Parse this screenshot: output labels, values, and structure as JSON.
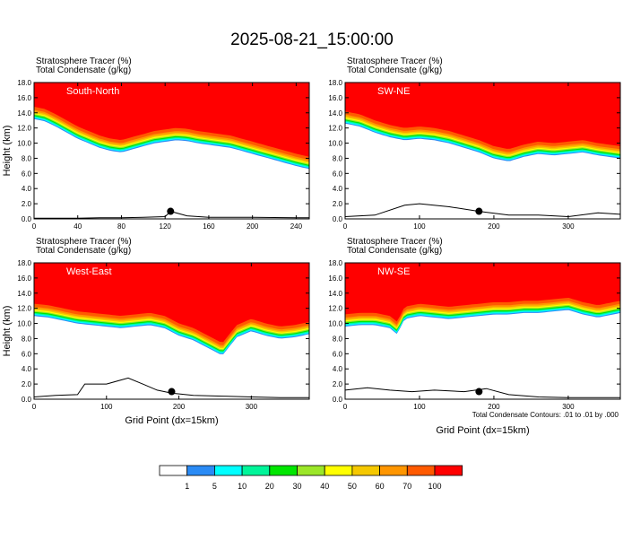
{
  "figure": {
    "title": "2025-08-21_15:00:00",
    "footnote": "Total Condensate Contours: .01 to .01 by .000"
  },
  "colorbar": {
    "colors": [
      "#ffffff",
      "#2a8bf5",
      "#00ffff",
      "#00f59a",
      "#00e600",
      "#9be628",
      "#ffff00",
      "#f5c800",
      "#ff9600",
      "#ff5a00",
      "#ff0000"
    ],
    "labels": [
      "1",
      "5",
      "10",
      "20",
      "30",
      "40",
      "50",
      "60",
      "70",
      "100"
    ]
  },
  "chart_data": [
    {
      "type": "heatmap",
      "panel_label": "South-North",
      "header_line1": "Stratosphere Tracer   (%)",
      "header_line2": "Total Condensate   (g/kg)",
      "ylabel": "Height (km)",
      "xlabel": "",
      "xlim": [
        0,
        252
      ],
      "ylim": [
        0,
        18
      ],
      "xticks": [
        0,
        40,
        80,
        120,
        160,
        200,
        240
      ],
      "yticks": [
        0,
        2,
        4,
        6,
        8,
        10,
        12,
        14,
        16,
        18
      ],
      "tracer_boundary": {
        "x": [
          0,
          10,
          20,
          30,
          40,
          50,
          60,
          70,
          80,
          90,
          100,
          110,
          120,
          130,
          140,
          150,
          160,
          170,
          180,
          190,
          200,
          210,
          220,
          230,
          240,
          252
        ],
        "top_of_mixing_km": [
          14.8,
          14.5,
          13.8,
          13.0,
          12.2,
          11.6,
          11.0,
          10.6,
          10.4,
          10.8,
          11.2,
          11.6,
          11.8,
          12.0,
          11.9,
          11.6,
          11.4,
          11.2,
          11.0,
          10.6,
          10.2,
          9.8,
          9.4,
          9.0,
          8.6,
          8.2
        ]
      },
      "terrain": {
        "x": [
          0,
          20,
          40,
          60,
          80,
          100,
          120,
          125,
          140,
          160,
          200,
          240,
          252
        ],
        "height_km": [
          0.1,
          0.1,
          0.1,
          0.15,
          0.15,
          0.2,
          0.3,
          1.0,
          0.4,
          0.2,
          0.2,
          0.15,
          0.15
        ]
      },
      "marker": {
        "x": 125,
        "y": 1.0
      }
    },
    {
      "type": "heatmap",
      "panel_label": "SW-NE",
      "header_line1": "Stratosphere Tracer   (%)",
      "header_line2": "Total Condensate   (g/kg)",
      "ylabel": "",
      "xlabel": "",
      "xlim": [
        0,
        370
      ],
      "ylim": [
        0,
        18
      ],
      "xticks": [
        0,
        100,
        200,
        300
      ],
      "yticks": [
        0,
        2,
        4,
        6,
        8,
        10,
        12,
        14,
        16,
        18
      ],
      "tracer_boundary": {
        "x": [
          0,
          20,
          40,
          60,
          80,
          100,
          120,
          140,
          160,
          180,
          200,
          220,
          240,
          260,
          280,
          300,
          320,
          340,
          370
        ],
        "top_of_mixing_km": [
          14.2,
          13.8,
          13.0,
          12.4,
          12.0,
          12.2,
          12.0,
          11.6,
          11.0,
          10.4,
          9.6,
          9.2,
          9.8,
          10.2,
          10.0,
          10.2,
          10.4,
          10.0,
          9.6
        ]
      },
      "terrain": {
        "x": [
          0,
          40,
          80,
          100,
          140,
          180,
          220,
          260,
          300,
          340,
          370
        ],
        "height_km": [
          0.3,
          0.5,
          1.8,
          2.0,
          1.6,
          1.0,
          0.5,
          0.5,
          0.3,
          0.8,
          0.6
        ]
      },
      "marker": {
        "x": 180,
        "y": 1.0
      }
    },
    {
      "type": "heatmap",
      "panel_label": "West-East",
      "header_line1": "Stratosphere Tracer   (%)",
      "header_line2": "Total Condensate   (g/kg)",
      "ylabel": "Height (km)",
      "xlabel": "Grid Point (dx=15km)",
      "xlim": [
        0,
        380
      ],
      "ylim": [
        0,
        18
      ],
      "xticks": [
        0,
        100,
        200,
        300
      ],
      "yticks": [
        0,
        2,
        4,
        6,
        8,
        10,
        12,
        14,
        16,
        18
      ],
      "tracer_boundary": {
        "x": [
          0,
          20,
          40,
          60,
          80,
          100,
          120,
          140,
          160,
          180,
          200,
          220,
          240,
          260,
          280,
          300,
          320,
          340,
          360,
          380
        ],
        "top_of_mixing_km": [
          12.6,
          12.4,
          12.0,
          11.6,
          11.4,
          11.2,
          11.0,
          11.2,
          11.4,
          11.0,
          10.0,
          9.4,
          8.4,
          7.4,
          9.8,
          10.6,
          10.0,
          9.6,
          9.8,
          10.2
        ]
      },
      "terrain": {
        "x": [
          0,
          30,
          60,
          70,
          100,
          130,
          150,
          170,
          190,
          220,
          260,
          300,
          340,
          380
        ],
        "height_km": [
          0.3,
          0.5,
          0.6,
          2.0,
          2.0,
          2.8,
          2.0,
          1.2,
          0.8,
          0.5,
          0.4,
          0.3,
          0.2,
          0.2
        ]
      },
      "marker": {
        "x": 190,
        "y": 1.0
      }
    },
    {
      "type": "heatmap",
      "panel_label": "NW-SE",
      "header_line1": "Stratosphere Tracer   (%)",
      "header_line2": "Total Condensate   (g/kg)",
      "ylabel": "",
      "xlabel": "Grid Point (dx=15km)",
      "xlim": [
        0,
        370
      ],
      "ylim": [
        0,
        18
      ],
      "xticks": [
        0,
        100,
        200,
        300
      ],
      "yticks": [
        0,
        2,
        4,
        6,
        8,
        10,
        12,
        14,
        16,
        18
      ],
      "tracer_boundary": {
        "x": [
          0,
          20,
          40,
          60,
          70,
          80,
          100,
          120,
          140,
          160,
          180,
          200,
          220,
          240,
          260,
          280,
          300,
          320,
          340,
          370
        ],
        "top_of_mixing_km": [
          11.2,
          11.4,
          11.4,
          11.0,
          10.2,
          12.2,
          12.6,
          12.4,
          12.2,
          12.4,
          12.6,
          12.8,
          12.8,
          13.0,
          13.0,
          13.2,
          13.4,
          12.8,
          12.4,
          13.0
        ]
      },
      "terrain": {
        "x": [
          0,
          30,
          60,
          90,
          120,
          160,
          190,
          220,
          260,
          300,
          340,
          370
        ],
        "height_km": [
          1.2,
          1.5,
          1.2,
          1.0,
          1.2,
          1.0,
          1.4,
          0.6,
          0.3,
          0.2,
          0.2,
          0.2
        ]
      },
      "marker": {
        "x": 180,
        "y": 1.0
      }
    }
  ]
}
